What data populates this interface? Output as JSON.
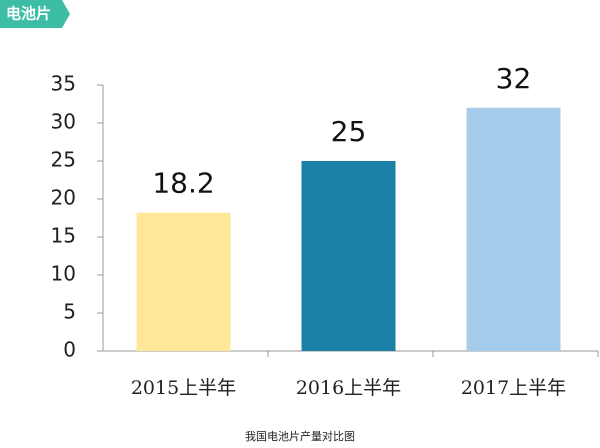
{
  "tag": "电池片",
  "chart_data": {
    "type": "bar",
    "categories": [
      "2015上半年",
      "2016上半年",
      "2017上半年"
    ],
    "values": [
      18.2,
      25,
      32
    ],
    "colors": [
      "#ffe699",
      "#1b7fa8",
      "#a6ccec"
    ],
    "ylim": [
      0,
      35
    ],
    "yticks": [
      0,
      5,
      10,
      15,
      20,
      25,
      30,
      35
    ],
    "grid": false,
    "caption": "我国电池片产量对比图"
  }
}
